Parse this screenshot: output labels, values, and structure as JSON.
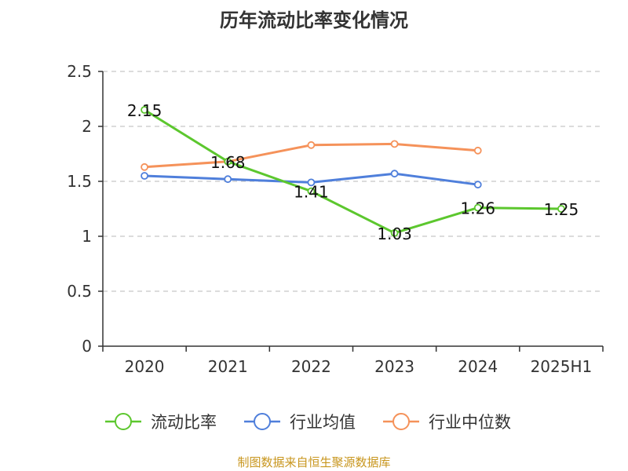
{
  "chart_data": {
    "type": "line",
    "title": "历年流动比率变化情况",
    "categories": [
      "2020",
      "2021",
      "2022",
      "2023",
      "2024",
      "2025H1"
    ],
    "ylim": [
      0,
      2.5
    ],
    "yticks": [
      "0",
      "0.5",
      "1",
      "1.5",
      "2",
      "2.5"
    ],
    "grid": true,
    "legend_position": "bottom",
    "series": [
      {
        "name": "流动比率",
        "color": "#5cc72e",
        "values": [
          2.15,
          1.68,
          1.41,
          1.03,
          1.26,
          1.25
        ],
        "labels": [
          "2.15",
          "1.68",
          "1.41",
          "1.03",
          "1.26",
          "1.25"
        ]
      },
      {
        "name": "行业均值",
        "color": "#4f7fdb",
        "values": [
          1.55,
          1.52,
          1.49,
          1.57,
          1.47,
          null
        ]
      },
      {
        "name": "行业中位数",
        "color": "#f5925a",
        "values": [
          1.63,
          1.68,
          1.83,
          1.84,
          1.78,
          null
        ]
      }
    ]
  },
  "source_text": "制图数据来自恒生聚源数据库"
}
